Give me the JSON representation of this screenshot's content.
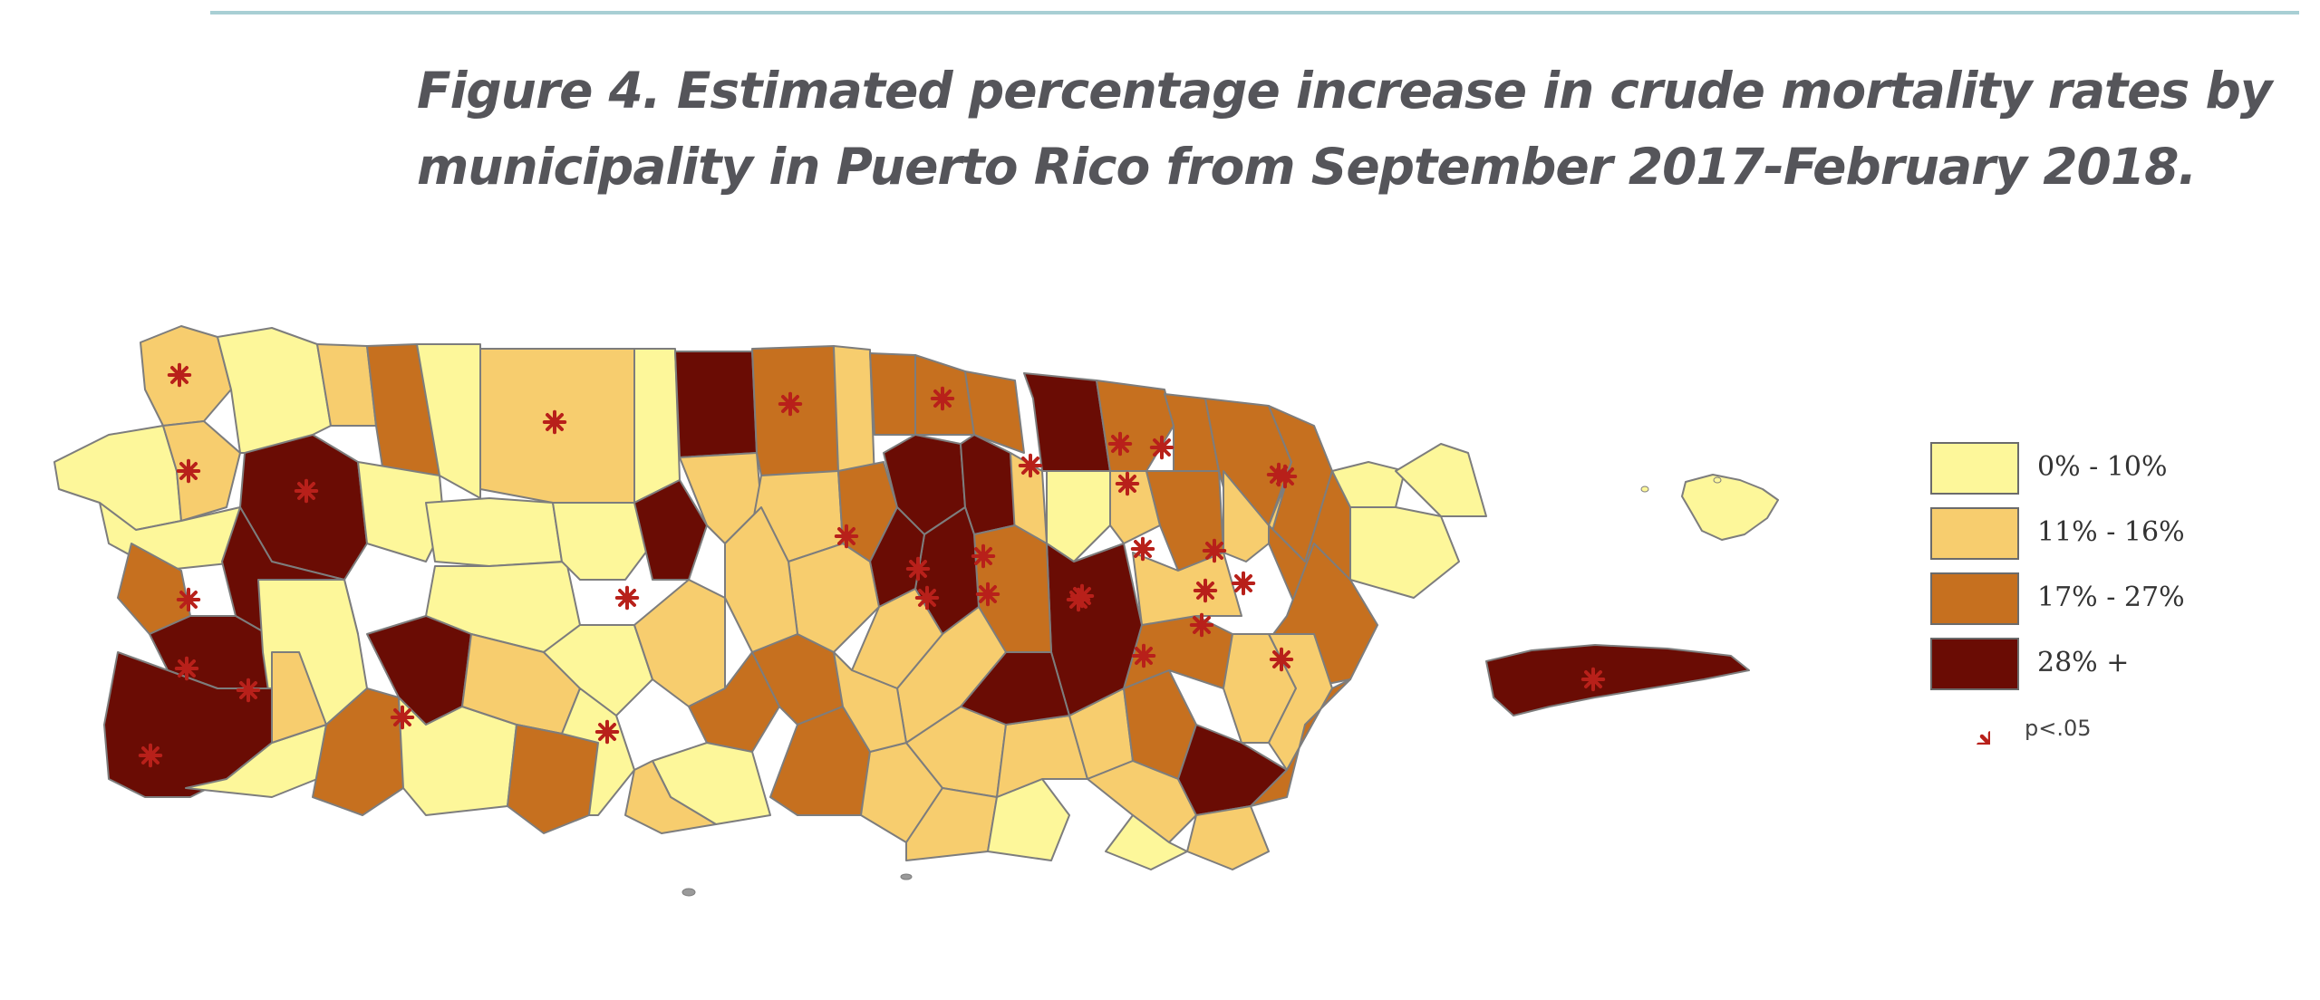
{
  "figure": {
    "title_line1": "Figure 4. Estimated percentage increase in crude mortality rates by",
    "title_line2": "municipality in Puerto Rico from September 2017-February 2018."
  },
  "legend": {
    "items": [
      {
        "label": "0% - 10%",
        "color": "#fdf79a"
      },
      {
        "label": "11% - 16%",
        "color": "#f7cd6e"
      },
      {
        "label": "17% - 27%",
        "color": "#c6701f"
      },
      {
        "label": "28% +",
        "color": "#6a0c04"
      }
    ],
    "significance_label": "p<.05",
    "significance_color": "#b8201a"
  },
  "map": {
    "region": "Puerto Rico",
    "border_color": "#7d7d7d"
  }
}
